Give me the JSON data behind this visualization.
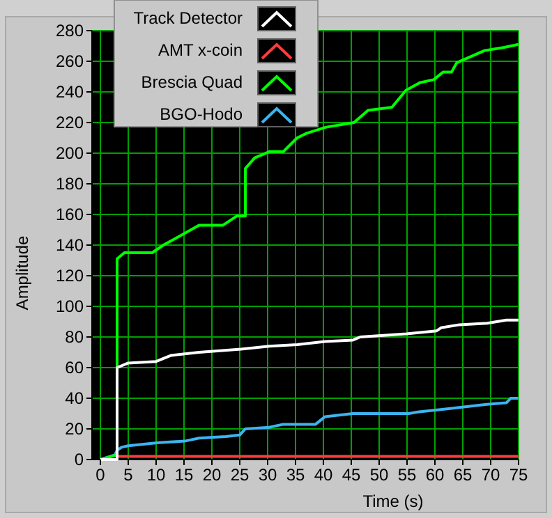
{
  "chart_data": {
    "type": "line",
    "xlabel": "Time (s)",
    "ylabel": "Amplitude",
    "xlim": [
      -1.5,
      75
    ],
    "ylim": [
      0,
      280
    ],
    "xticks": [
      0,
      5,
      10,
      15,
      20,
      25,
      30,
      35,
      40,
      45,
      50,
      55,
      60,
      65,
      70,
      75
    ],
    "yticks": [
      0,
      20,
      40,
      60,
      80,
      100,
      120,
      140,
      160,
      180,
      200,
      220,
      240,
      260,
      280
    ],
    "grid": true,
    "legend": "top left",
    "line_style": "solid",
    "marker": "none",
    "series": [
      {
        "name": "Track Detector",
        "color": "#ffffff",
        "x": [
          0,
          3,
          3,
          5,
          10,
          12.7,
          17.7,
          25.2,
          30.3,
          35.3,
          40.3,
          45.3,
          46.6,
          54.9,
          60.3,
          61.1,
          64.4,
          69.4,
          72.8,
          75
        ],
        "values": [
          0,
          0,
          60,
          63,
          64,
          68,
          70,
          72,
          74,
          75,
          77,
          78,
          80,
          82,
          84,
          86,
          88,
          89,
          91,
          91
        ]
      },
      {
        "name": "AMT x-coin",
        "color": "#ff3c3c",
        "x": [
          3,
          75
        ],
        "values": [
          2,
          2
        ]
      },
      {
        "name": "Brescia Quad",
        "color": "#00ff00",
        "x": [
          0,
          2,
          3,
          3,
          4.3,
          9.3,
          11.3,
          13.8,
          17.7,
          22,
          24.5,
          26,
          26,
          27.7,
          30.3,
          32.8,
          35.3,
          37,
          40.5,
          45.5,
          48,
          52.3,
          54.8,
          57.3,
          59.8,
          61.5,
          63,
          63.9,
          66.4,
          68.9,
          72.3,
          75
        ],
        "values": [
          0,
          2,
          3,
          131,
          135,
          135,
          140,
          145,
          153,
          153,
          159,
          159,
          190,
          197,
          201,
          201,
          210,
          213,
          217,
          220,
          228,
          230,
          241,
          246,
          248,
          253,
          253,
          259,
          263,
          267,
          269,
          271
        ]
      },
      {
        "name": "BGO-Hodo",
        "color": "#3cb4f0",
        "x": [
          0,
          2.6,
          3,
          3.8,
          5,
          10.5,
          15.1,
          17.7,
          22.5,
          25,
          26,
          30.3,
          32.8,
          38.6,
          40.3,
          45.3,
          55.3,
          56.9,
          61.9,
          69.3,
          72.8,
          73.6,
          75
        ],
        "values": [
          0,
          3,
          6,
          8,
          9,
          11,
          12,
          14,
          15,
          16,
          20,
          21,
          23,
          23,
          28,
          30,
          30,
          31,
          33,
          36,
          37,
          40,
          40
        ]
      }
    ]
  }
}
